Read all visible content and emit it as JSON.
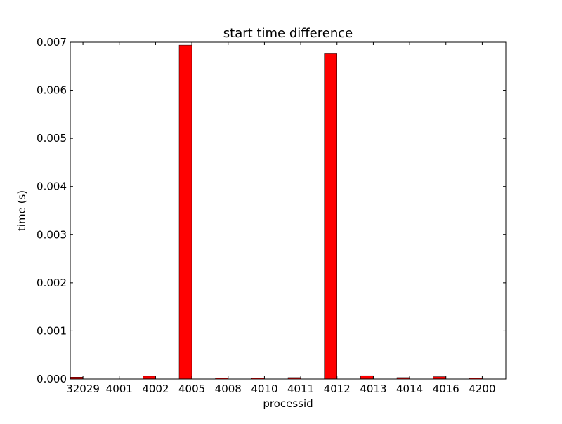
{
  "chart_data": {
    "type": "bar",
    "title": "start time difference",
    "xlabel": "processid",
    "ylabel": "time (s)",
    "categories": [
      "32029",
      "4001",
      "4002",
      "4005",
      "4008",
      "4010",
      "4011",
      "4012",
      "4013",
      "4014",
      "4016",
      "4200"
    ],
    "values": [
      4e-05,
      0.0,
      6e-05,
      0.00694,
      2e-05,
      2e-05,
      3e-05,
      0.00676,
      7e-05,
      3e-05,
      5e-05,
      2e-05
    ],
    "ylim": [
      0,
      0.007
    ],
    "yticks": [
      "0.000",
      "0.001",
      "0.002",
      "0.003",
      "0.004",
      "0.005",
      "0.006",
      "0.007"
    ],
    "grid": false,
    "bar_color": "#ff0000"
  }
}
